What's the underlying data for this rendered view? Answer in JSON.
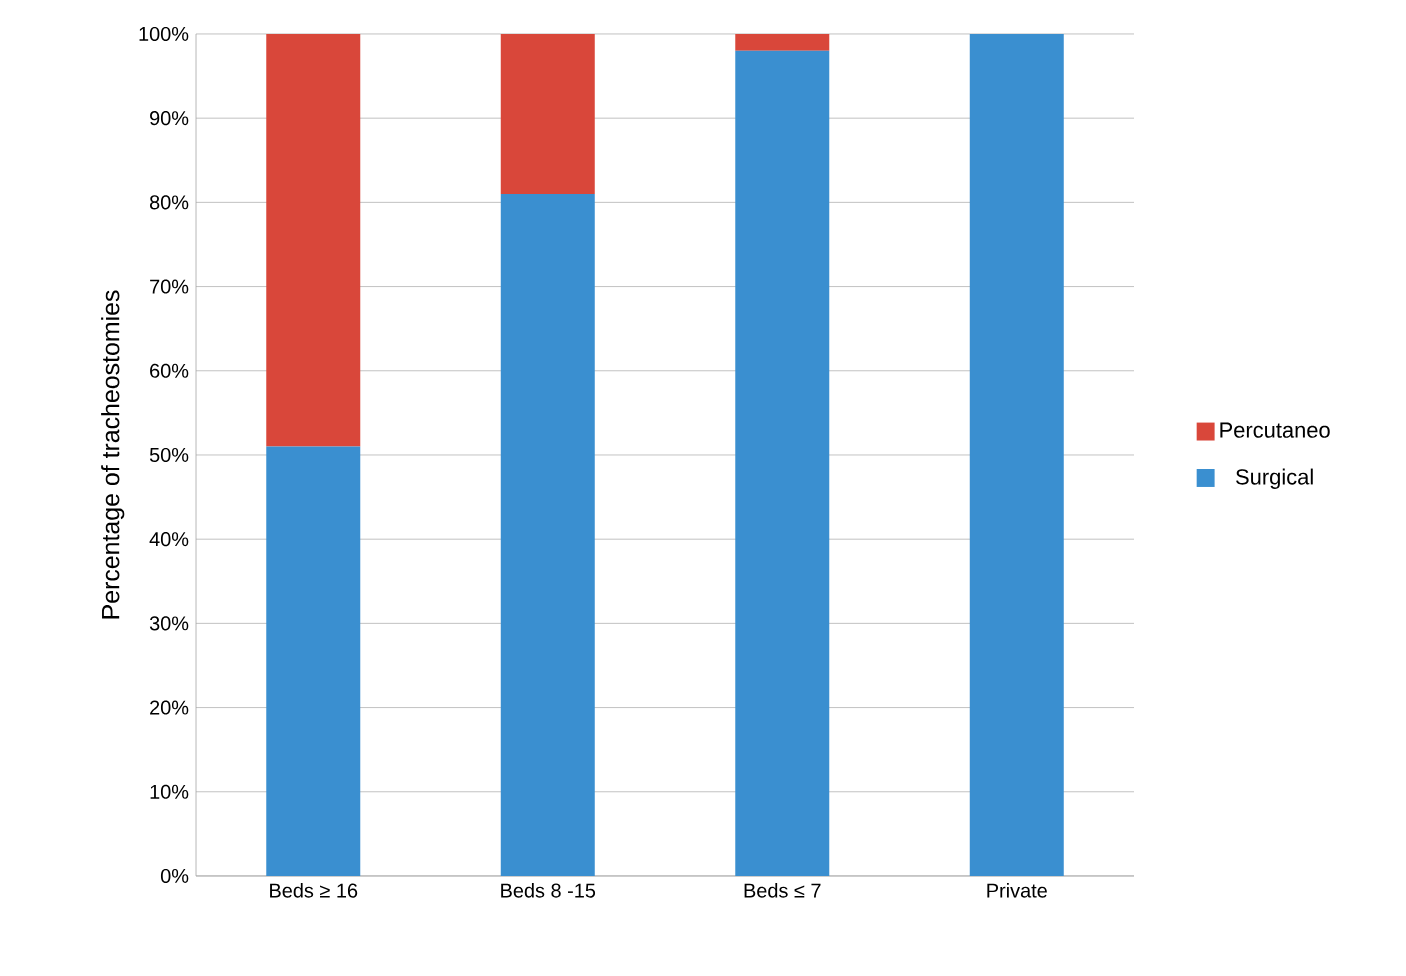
{
  "chart_data": {
    "type": "bar",
    "stacked": true,
    "ylabel": "Percentage of tracheostomies",
    "categories": [
      "Beds ≥ 16",
      "Beds 8 -15",
      "Beds ≤ 7",
      "Private"
    ],
    "series": [
      {
        "name": "Surgical",
        "color": "#3a8fd0",
        "values": [
          51,
          81,
          98,
          100
        ]
      },
      {
        "name": "Percutaneo",
        "color": "#d9473a",
        "values": [
          49,
          19,
          2,
          0
        ]
      }
    ],
    "ylim": [
      0,
      100
    ],
    "yticks": [
      {
        "value": 0,
        "label": "0%"
      },
      {
        "value": 10,
        "label": "10%"
      },
      {
        "value": 20,
        "label": "20%"
      },
      {
        "value": 30,
        "label": "30%"
      },
      {
        "value": 40,
        "label": "40%"
      },
      {
        "value": 50,
        "label": "50%"
      },
      {
        "value": 60,
        "label": "60%"
      },
      {
        "value": 70,
        "label": "70%"
      },
      {
        "value": 80,
        "label": "80%"
      },
      {
        "value": 90,
        "label": "90%"
      },
      {
        "value": 100,
        "label": "100%"
      }
    ],
    "grid": "y",
    "legend": "right"
  }
}
